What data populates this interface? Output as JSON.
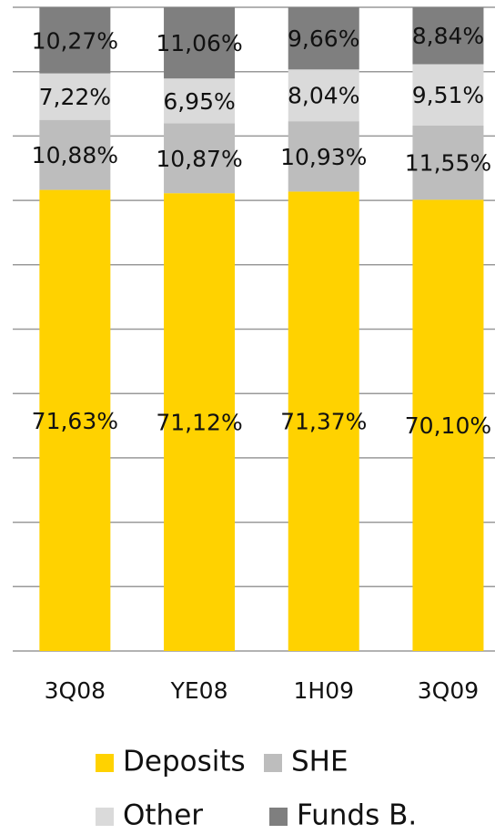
{
  "chart_data": {
    "type": "stacked_bar",
    "categories": [
      "3Q08",
      "YE08",
      "1H09",
      "3Q09"
    ],
    "series": [
      {
        "name": "Deposits",
        "color": "#ffd200",
        "values": [
          71.63,
          71.12,
          71.37,
          70.1
        ],
        "value_labels": [
          "71,63%",
          "71,12%",
          "71,37%",
          "70,10%"
        ]
      },
      {
        "name": "SHE",
        "color": "#bdbdbd",
        "values": [
          10.88,
          10.87,
          10.93,
          11.55
        ],
        "value_labels": [
          "10,88%",
          "10,87%",
          "10,93%",
          "11,55%"
        ]
      },
      {
        "name": "Other",
        "color": "#dadada",
        "values": [
          7.22,
          6.95,
          8.04,
          9.51
        ],
        "value_labels": [
          "7,22%",
          "6,95%",
          "8,04%",
          "9,51%"
        ]
      },
      {
        "name": "Funds B.",
        "color": "#7f7f7f",
        "values": [
          10.27,
          11.06,
          9.66,
          8.84
        ],
        "value_labels": [
          "10,27%",
          "11,06%",
          "9,66%",
          "8,84%"
        ]
      }
    ],
    "ylim": [
      0,
      100
    ],
    "yticks": [
      0,
      10,
      20,
      30,
      40,
      50,
      60,
      70,
      80,
      90,
      100
    ],
    "grid": true
  }
}
